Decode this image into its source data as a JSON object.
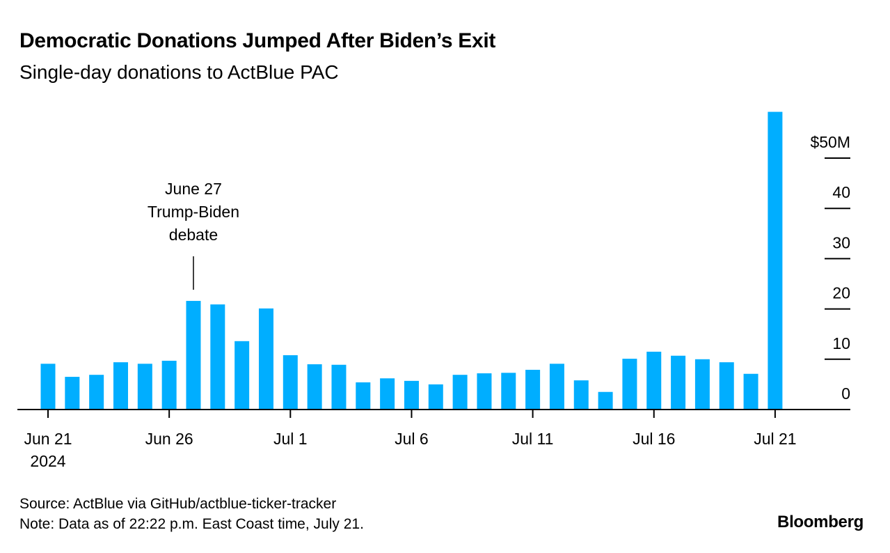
{
  "chart_data": {
    "type": "bar",
    "title": "Democratic Donations Jumped After Biden’s Exit",
    "subtitle": "Single-day donations to ActBlue PAC",
    "xlabel": "",
    "ylabel": "",
    "ylim": [
      0,
      60
    ],
    "y_ticks": [
      "0",
      "10",
      "20",
      "30",
      "40",
      "$50M"
    ],
    "y_tick_values": [
      0,
      10,
      20,
      30,
      40,
      50
    ],
    "y_axis_side": "right",
    "x_tick_labels": [
      "Jun 21",
      "Jun 26",
      "Jul 1",
      "Jul 6",
      "Jul 11",
      "Jul 16",
      "Jul 21"
    ],
    "x_year_label": "2024",
    "color": "#00aeff",
    "grid": false,
    "categories": [
      "Jun 21",
      "Jun 22",
      "Jun 23",
      "Jun 24",
      "Jun 25",
      "Jun 26",
      "Jun 27",
      "Jun 28",
      "Jun 29",
      "Jun 30",
      "Jul 1",
      "Jul 2",
      "Jul 3",
      "Jul 4",
      "Jul 5",
      "Jul 6",
      "Jul 7",
      "Jul 8",
      "Jul 9",
      "Jul 10",
      "Jul 11",
      "Jul 12",
      "Jul 13",
      "Jul 14",
      "Jul 15",
      "Jul 16",
      "Jul 17",
      "Jul 18",
      "Jul 19",
      "Jul 20",
      "Jul 21"
    ],
    "values": [
      9.1,
      6.5,
      6.9,
      9.4,
      9.1,
      9.7,
      21.6,
      20.9,
      13.6,
      20.1,
      10.8,
      9.0,
      8.9,
      5.4,
      6.2,
      5.7,
      5.0,
      6.9,
      7.2,
      7.3,
      7.9,
      9.1,
      5.8,
      3.5,
      10.1,
      11.5,
      10.7,
      10.0,
      9.4,
      7.1,
      59.2
    ],
    "annotation": {
      "category": "Jun 27",
      "lines": [
        "June 27",
        "Trump-Biden",
        "debate"
      ]
    }
  },
  "footer": {
    "source": "Source: ActBlue via GitHub/actblue-ticker-tracker",
    "note": "Note: Data as of 22:22 p.m. East Coast time, July 21.",
    "brand": "Bloomberg"
  }
}
